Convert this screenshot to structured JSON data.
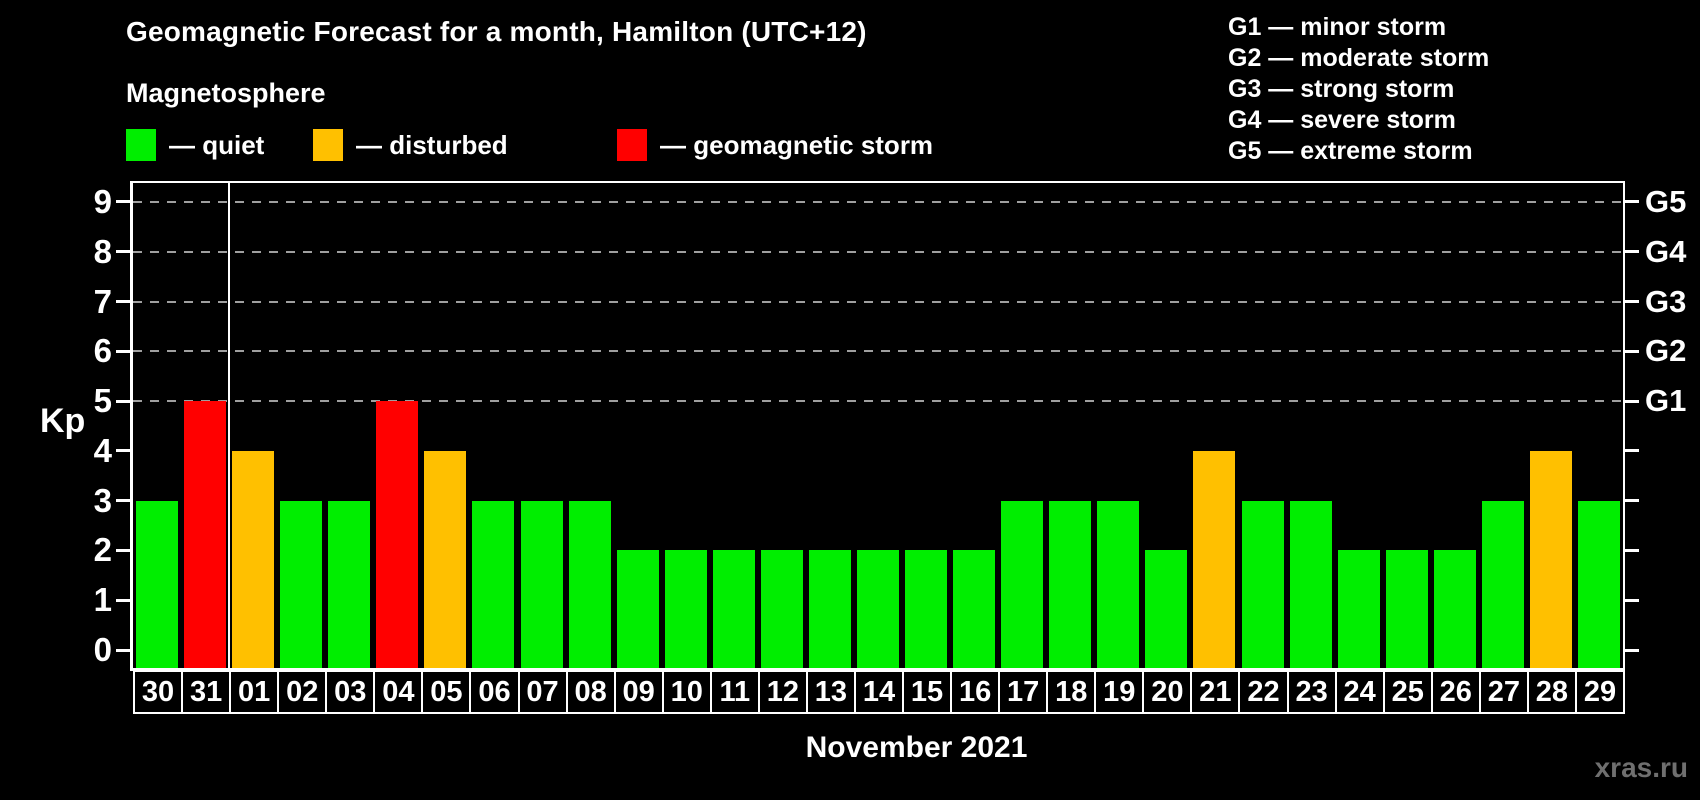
{
  "header": {
    "title": "Geomagnetic Forecast for a month, Hamilton (UTC+12)",
    "subtitle": "Magnetosphere"
  },
  "legend": {
    "items": [
      {
        "label": "— quiet",
        "status": "quiet"
      },
      {
        "label": "— disturbed",
        "status": "disturbed"
      },
      {
        "label": "— geomagnetic storm",
        "status": "storm"
      }
    ]
  },
  "g_scale_legend": {
    "items": [
      "G1 — minor storm",
      "G2 — moderate storm",
      "G3 — strong storm",
      "G4 — severe storm",
      "G5 — extreme storm"
    ]
  },
  "colors": {
    "quiet": "#00ee00",
    "disturbed": "#ffc000",
    "storm": "#ff0000",
    "background": "#000000",
    "axis": "#ffffff",
    "grid": "#9f9f9f",
    "watermark": "#6f6f6f"
  },
  "axes": {
    "left_label": "Kp",
    "x_title": "November 2021",
    "yticks": [
      0,
      1,
      2,
      3,
      4,
      5,
      6,
      7,
      8,
      9
    ],
    "grid_values": [
      5,
      6,
      7,
      8,
      9
    ],
    "right_labels": [
      {
        "label": "G1",
        "value": 5
      },
      {
        "label": "G2",
        "value": 6
      },
      {
        "label": "G3",
        "value": 7
      },
      {
        "label": "G4",
        "value": 8
      },
      {
        "label": "G5",
        "value": 9
      }
    ]
  },
  "watermark": "xras.ru",
  "chart_data": {
    "type": "bar",
    "title": "Geomagnetic Forecast for a month, Hamilton (UTC+12)",
    "categories": [
      "30",
      "31",
      "01",
      "02",
      "03",
      "04",
      "05",
      "06",
      "07",
      "08",
      "09",
      "10",
      "11",
      "12",
      "13",
      "14",
      "15",
      "16",
      "17",
      "18",
      "19",
      "20",
      "21",
      "22",
      "23",
      "24",
      "25",
      "26",
      "27",
      "28",
      "29"
    ],
    "values": [
      3,
      5,
      4,
      3,
      3,
      5,
      4,
      3,
      3,
      3,
      2,
      2,
      2,
      2,
      2,
      2,
      2,
      2,
      3,
      3,
      3,
      2,
      4,
      3,
      3,
      2,
      2,
      2,
      3,
      4,
      3
    ],
    "statuses": [
      "quiet",
      "storm",
      "disturbed",
      "quiet",
      "quiet",
      "storm",
      "disturbed",
      "quiet",
      "quiet",
      "quiet",
      "quiet",
      "quiet",
      "quiet",
      "quiet",
      "quiet",
      "quiet",
      "quiet",
      "quiet",
      "quiet",
      "quiet",
      "quiet",
      "quiet",
      "disturbed",
      "quiet",
      "quiet",
      "quiet",
      "quiet",
      "quiet",
      "quiet",
      "disturbed",
      "quiet"
    ],
    "ylabel": "Kp",
    "xlabel": "November 2021",
    "ylim": [
      0,
      9
    ],
    "grid": "dashed-horizontal-at-5-to-9",
    "legend_position": "top-left",
    "separator_after_index": 1
  }
}
